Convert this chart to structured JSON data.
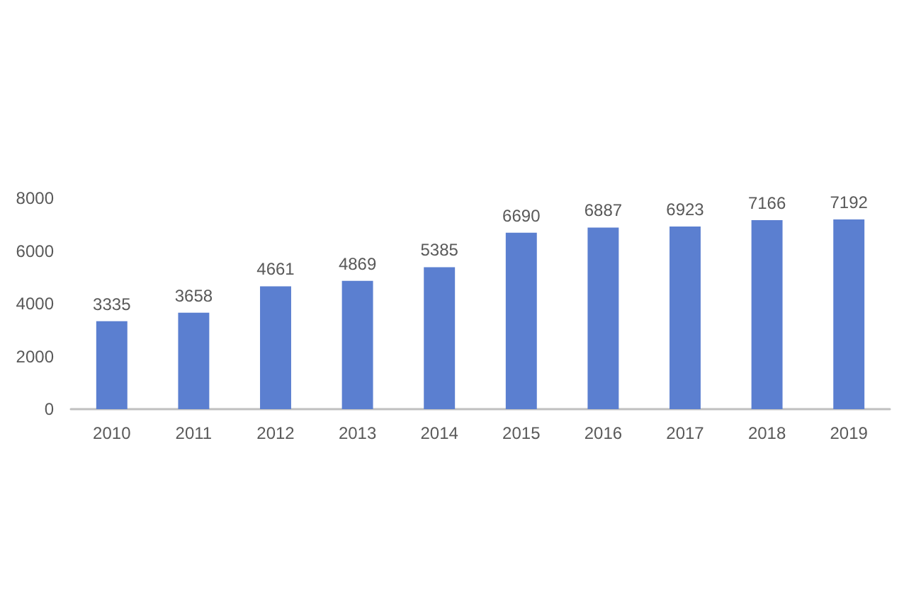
{
  "chart_data": {
    "type": "bar",
    "categories": [
      "2010",
      "2011",
      "2012",
      "2013",
      "2014",
      "2015",
      "2016",
      "2017",
      "2018",
      "2019"
    ],
    "values": [
      3335,
      3658,
      4661,
      4869,
      5385,
      6690,
      6887,
      6923,
      7166,
      7192
    ],
    "color": "#5b7fd0",
    "ylim": [
      0,
      8000
    ],
    "yticks": [
      0,
      2000,
      4000,
      6000,
      8000
    ],
    "grid": false,
    "data_labels": true
  }
}
